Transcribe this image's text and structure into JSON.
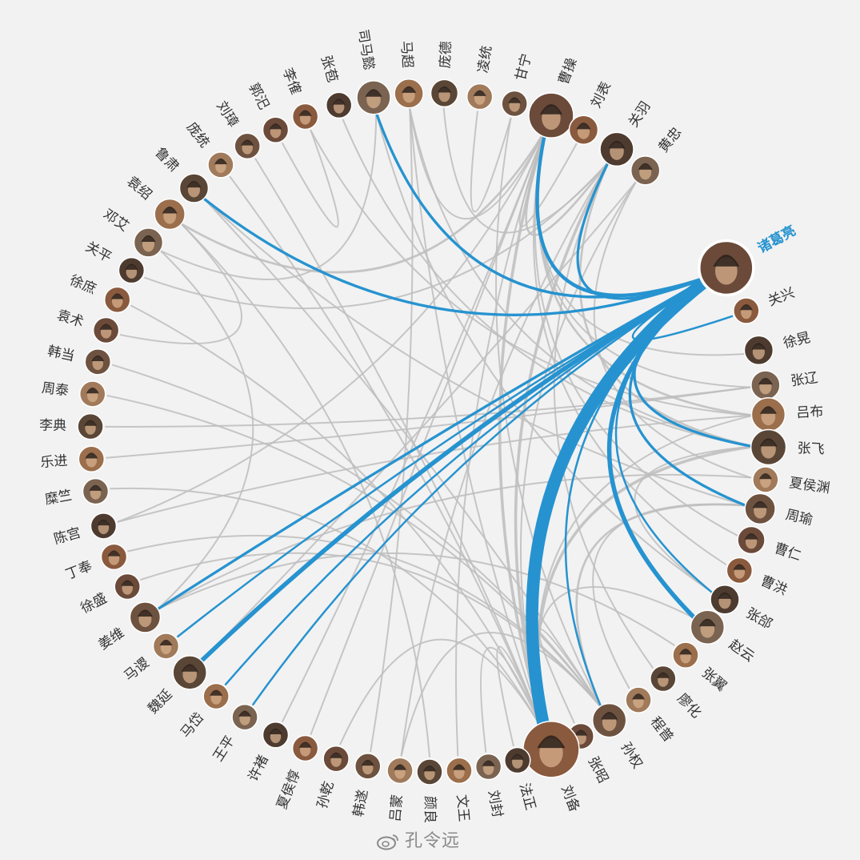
{
  "highlight": "诸葛亮",
  "colors": {
    "highlight": "#2693d0",
    "link": "#bdbdbd",
    "label": "#333333"
  },
  "watermark": "孔令远",
  "characters": [
    {
      "name": "诸葛亮",
      "deg": -29,
      "r": 33
    },
    {
      "name": "关兴",
      "deg": -21,
      "r": 16
    },
    {
      "name": "徐晃",
      "deg": -14,
      "r": 18
    },
    {
      "name": "张辽",
      "deg": -8,
      "r": 18
    },
    {
      "name": "吕布",
      "deg": -3,
      "r": 21
    },
    {
      "name": "张飞",
      "deg": 2.5,
      "r": 22
    },
    {
      "name": "夏侯渊",
      "deg": 8,
      "r": 16
    },
    {
      "name": "周瑜",
      "deg": 13,
      "r": 19
    },
    {
      "name": "曹仁",
      "deg": 18.5,
      "r": 17
    },
    {
      "name": "曹洪",
      "deg": 24,
      "r": 16
    },
    {
      "name": "张郃",
      "deg": 29.5,
      "r": 18
    },
    {
      "name": "赵云",
      "deg": 35,
      "r": 21
    },
    {
      "name": "张翼",
      "deg": 41,
      "r": 16
    },
    {
      "name": "廖化",
      "deg": 46.5,
      "r": 16
    },
    {
      "name": "程普",
      "deg": 52,
      "r": 16
    },
    {
      "name": "孙权",
      "deg": 58,
      "r": 21
    },
    {
      "name": "张昭",
      "deg": 63.5,
      "r": 16
    },
    {
      "name": "刘备",
      "deg": 69,
      "r": 35
    },
    {
      "name": "法正",
      "deg": 75,
      "r": 16
    },
    {
      "name": "刘封",
      "deg": 80,
      "r": 16
    },
    {
      "name": "文王",
      "deg": 85,
      "r": 16
    },
    {
      "name": "颜良",
      "deg": 90,
      "r": 16
    },
    {
      "name": "吕蒙",
      "deg": 95,
      "r": 16
    },
    {
      "name": "韩遂",
      "deg": 100.5,
      "r": 16
    },
    {
      "name": "孙乾",
      "deg": 106,
      "r": 16
    },
    {
      "name": "夏侯惇",
      "deg": 111.5,
      "r": 16
    },
    {
      "name": "许褚",
      "deg": 117,
      "r": 16
    },
    {
      "name": "王平",
      "deg": 123,
      "r": 16
    },
    {
      "name": "马岱",
      "deg": 129,
      "r": 16
    },
    {
      "name": "魏延",
      "deg": 135,
      "r": 21
    },
    {
      "name": "马谡",
      "deg": 141,
      "r": 16
    },
    {
      "name": "姜维",
      "deg": 147,
      "r": 19
    },
    {
      "name": "徐盛",
      "deg": 153,
      "r": 16
    },
    {
      "name": "丁奉",
      "deg": 158.5,
      "r": 16
    },
    {
      "name": "陈宫",
      "deg": 164,
      "r": 16
    },
    {
      "name": "糜竺",
      "deg": 170,
      "r": 16
    },
    {
      "name": "乐进",
      "deg": 175.5,
      "r": 16
    },
    {
      "name": "李典",
      "deg": 181,
      "r": 16
    },
    {
      "name": "周泰",
      "deg": 186.5,
      "r": 16
    },
    {
      "name": "韩当",
      "deg": 192,
      "r": 16
    },
    {
      "name": "袁术",
      "deg": 197.5,
      "r": 16
    },
    {
      "name": "徐庶",
      "deg": 203,
      "r": 16
    },
    {
      "name": "关平",
      "deg": 208.5,
      "r": 16
    },
    {
      "name": "邓艾",
      "deg": 214,
      "r": 18
    },
    {
      "name": "袁绍",
      "deg": 220,
      "r": 19
    },
    {
      "name": "鲁肃",
      "deg": 226,
      "r": 18
    },
    {
      "name": "庞统",
      "deg": 232,
      "r": 16
    },
    {
      "name": "刘璋",
      "deg": 237.5,
      "r": 16
    },
    {
      "name": "郭汜",
      "deg": 243,
      "r": 16
    },
    {
      "name": "李傕",
      "deg": 248.5,
      "r": 16
    },
    {
      "name": "张苞",
      "deg": 254.5,
      "r": 16
    },
    {
      "name": "司马懿",
      "deg": 260.5,
      "r": 21
    },
    {
      "name": "马超",
      "deg": 266.5,
      "r": 18
    },
    {
      "name": "庞德",
      "deg": 272.5,
      "r": 17
    },
    {
      "name": "凌统",
      "deg": 278.5,
      "r": 16
    },
    {
      "name": "甘宁",
      "deg": 284.5,
      "r": 16
    },
    {
      "name": "曹操",
      "deg": 291,
      "r": 28
    },
    {
      "name": "刘表",
      "deg": 297,
      "r": 18
    },
    {
      "name": "关羽",
      "deg": 303.5,
      "r": 21
    },
    {
      "name": "黄忠",
      "deg": 309.5,
      "r": 18
    }
  ],
  "links": [
    {
      "source": "诸葛亮",
      "target": "刘备",
      "weight": 14
    },
    {
      "source": "诸葛亮",
      "target": "曹操",
      "weight": 4
    },
    {
      "source": "诸葛亮",
      "target": "关羽",
      "weight": 3
    },
    {
      "source": "诸葛亮",
      "target": "魏延",
      "weight": 5
    },
    {
      "source": "诸葛亮",
      "target": "张飞",
      "weight": 3
    },
    {
      "source": "诸葛亮",
      "target": "赵云",
      "weight": 5
    },
    {
      "source": "诸葛亮",
      "target": "周瑜",
      "weight": 3
    },
    {
      "source": "诸葛亮",
      "target": "司马懿",
      "weight": 3
    },
    {
      "source": "诸葛亮",
      "target": "鲁肃",
      "weight": 3
    },
    {
      "source": "诸葛亮",
      "target": "姜维",
      "weight": 3
    },
    {
      "source": "诸葛亮",
      "target": "马谡",
      "weight": 2
    },
    {
      "source": "诸葛亮",
      "target": "马岱",
      "weight": 2
    },
    {
      "source": "诸葛亮",
      "target": "王平",
      "weight": 2
    },
    {
      "source": "诸葛亮",
      "target": "张郃",
      "weight": 2
    },
    {
      "source": "诸葛亮",
      "target": "孙权",
      "weight": 2
    },
    {
      "source": "诸葛亮",
      "target": "关兴",
      "weight": 2
    },
    {
      "source": "刘备",
      "target": "曹操",
      "weight": 4
    },
    {
      "source": "刘备",
      "target": "关羽",
      "weight": 4
    },
    {
      "source": "刘备",
      "target": "张飞",
      "weight": 4
    },
    {
      "source": "刘备",
      "target": "赵云",
      "weight": 2
    },
    {
      "source": "刘备",
      "target": "马超",
      "weight": 2
    },
    {
      "source": "刘备",
      "target": "黄忠",
      "weight": 2
    },
    {
      "source": "刘备",
      "target": "吕布",
      "weight": 2
    },
    {
      "source": "刘备",
      "target": "庞统",
      "weight": 2
    },
    {
      "source": "刘备",
      "target": "孙乾",
      "weight": 2
    },
    {
      "source": "曹操",
      "target": "袁绍",
      "weight": 3
    },
    {
      "source": "曹操",
      "target": "吕布",
      "weight": 3
    },
    {
      "source": "曹操",
      "target": "许褚",
      "weight": 2
    },
    {
      "source": "曹操",
      "target": "夏侯惇",
      "weight": 2
    },
    {
      "source": "曹操",
      "target": "张辽",
      "weight": 2
    },
    {
      "source": "曹操",
      "target": "关羽",
      "weight": 3
    },
    {
      "source": "曹操",
      "target": "刘表",
      "weight": 2
    },
    {
      "source": "曹操",
      "target": "陈宫",
      "weight": 2
    },
    {
      "source": "曹操",
      "target": "曹仁",
      "weight": 2
    },
    {
      "source": "曹操",
      "target": "马超",
      "weight": 2
    },
    {
      "source": "孙权",
      "target": "周瑜",
      "weight": 3
    },
    {
      "source": "孙权",
      "target": "鲁肃",
      "weight": 2
    },
    {
      "source": "孙权",
      "target": "吕蒙",
      "weight": 2
    },
    {
      "source": "孙权",
      "target": "甘宁",
      "weight": 2
    },
    {
      "source": "孙权",
      "target": "张昭",
      "weight": 2
    },
    {
      "source": "周瑜",
      "target": "鲁肃",
      "weight": 2
    },
    {
      "source": "周瑜",
      "target": "程普",
      "weight": 2
    },
    {
      "source": "关羽",
      "target": "张飞",
      "weight": 3
    },
    {
      "source": "关羽",
      "target": "吕蒙",
      "weight": 2
    },
    {
      "source": "关羽",
      "target": "庞德",
      "weight": 2
    },
    {
      "source": "关羽",
      "target": "关平",
      "weight": 2
    },
    {
      "source": "张飞",
      "target": "马超",
      "weight": 2
    },
    {
      "source": "张飞",
      "target": "张郃",
      "weight": 2
    },
    {
      "source": "司马懿",
      "target": "张郃",
      "weight": 2
    },
    {
      "source": "司马懿",
      "target": "邓艾",
      "weight": 2
    },
    {
      "source": "姜维",
      "target": "邓艾",
      "weight": 2
    },
    {
      "source": "姜维",
      "target": "夏侯渊",
      "weight": 2
    },
    {
      "source": "吕布",
      "target": "陈宫",
      "weight": 2
    },
    {
      "source": "吕布",
      "target": "李傕",
      "weight": 2
    },
    {
      "source": "李傕",
      "target": "郭汜",
      "weight": 2
    },
    {
      "source": "袁绍",
      "target": "颜良",
      "weight": 2
    },
    {
      "source": "袁绍",
      "target": "袁术",
      "weight": 2
    },
    {
      "source": "马超",
      "target": "韩遂",
      "weight": 2
    },
    {
      "source": "黄忠",
      "target": "夏侯渊",
      "weight": 2
    },
    {
      "source": "魏延",
      "target": "黄忠",
      "weight": 2
    },
    {
      "source": "甘宁",
      "target": "凌统",
      "weight": 2
    },
    {
      "source": "张辽",
      "target": "乐进",
      "weight": 2
    },
    {
      "source": "张辽",
      "target": "李典",
      "weight": 2
    },
    {
      "source": "刘备",
      "target": "刘璋",
      "weight": 2
    },
    {
      "source": "刘备",
      "target": "法正",
      "weight": 2
    },
    {
      "source": "刘备",
      "target": "徐庶",
      "weight": 2
    },
    {
      "source": "刘备",
      "target": "糜竺",
      "weight": 2
    },
    {
      "source": "刘备",
      "target": "刘封",
      "weight": 2
    },
    {
      "source": "孙权",
      "target": "周泰",
      "weight": 2
    },
    {
      "source": "孙权",
      "target": "韩当",
      "weight": 2
    },
    {
      "source": "孙权",
      "target": "丁奉",
      "weight": 2
    },
    {
      "source": "孙权",
      "target": "徐盛",
      "weight": 2
    },
    {
      "source": "曹操",
      "target": "曹洪",
      "weight": 2
    },
    {
      "source": "曹操",
      "target": "徐晃",
      "weight": 2
    },
    {
      "source": "曹操",
      "target": "文王",
      "weight": 2
    },
    {
      "source": "关羽",
      "target": "廖化",
      "weight": 2
    },
    {
      "source": "张飞",
      "target": "张苞",
      "weight": 2
    },
    {
      "source": "姜维",
      "target": "张翼",
      "weight": 2
    }
  ]
}
